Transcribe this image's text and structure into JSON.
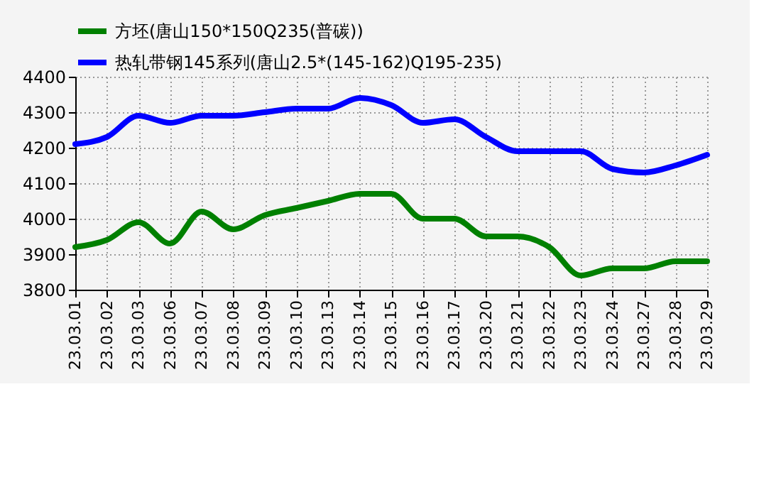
{
  "chart_data": {
    "type": "line",
    "categories": [
      "23.03.01",
      "23.03.02",
      "23.03.03",
      "23.03.06",
      "23.03.07",
      "23.03.08",
      "23.03.09",
      "23.03.10",
      "23.03.13",
      "23.03.14",
      "23.03.15",
      "23.03.16",
      "23.03.17",
      "23.03.20",
      "23.03.21",
      "23.03.22",
      "23.03.23",
      "23.03.24",
      "23.03.27",
      "23.03.28",
      "23.03.29"
    ],
    "series": [
      {
        "name": "方坯(唐山150*150Q235(普碳))",
        "color": "#008000",
        "values": [
          3920,
          3940,
          3990,
          3930,
          4020,
          3970,
          4010,
          4030,
          4050,
          4070,
          4070,
          4000,
          4000,
          3950,
          3950,
          3920,
          3840,
          3860,
          3860,
          3880,
          3880
        ]
      },
      {
        "name": "热轧带钢145系列(唐山2.5*(145-162)Q195-235)",
        "color": "#0000ff",
        "values": [
          4210,
          4230,
          4290,
          4270,
          4290,
          4290,
          4300,
          4310,
          4310,
          4340,
          4320,
          4270,
          4280,
          4230,
          4190,
          4190,
          4190,
          4140,
          4130,
          4150,
          4180
        ]
      }
    ],
    "ylim": [
      3800,
      4400
    ],
    "yticks": [
      3800,
      3900,
      4000,
      4100,
      4200,
      4300,
      4400
    ],
    "grid": true,
    "legend": "top",
    "marker": "none",
    "line_style": "solid"
  }
}
